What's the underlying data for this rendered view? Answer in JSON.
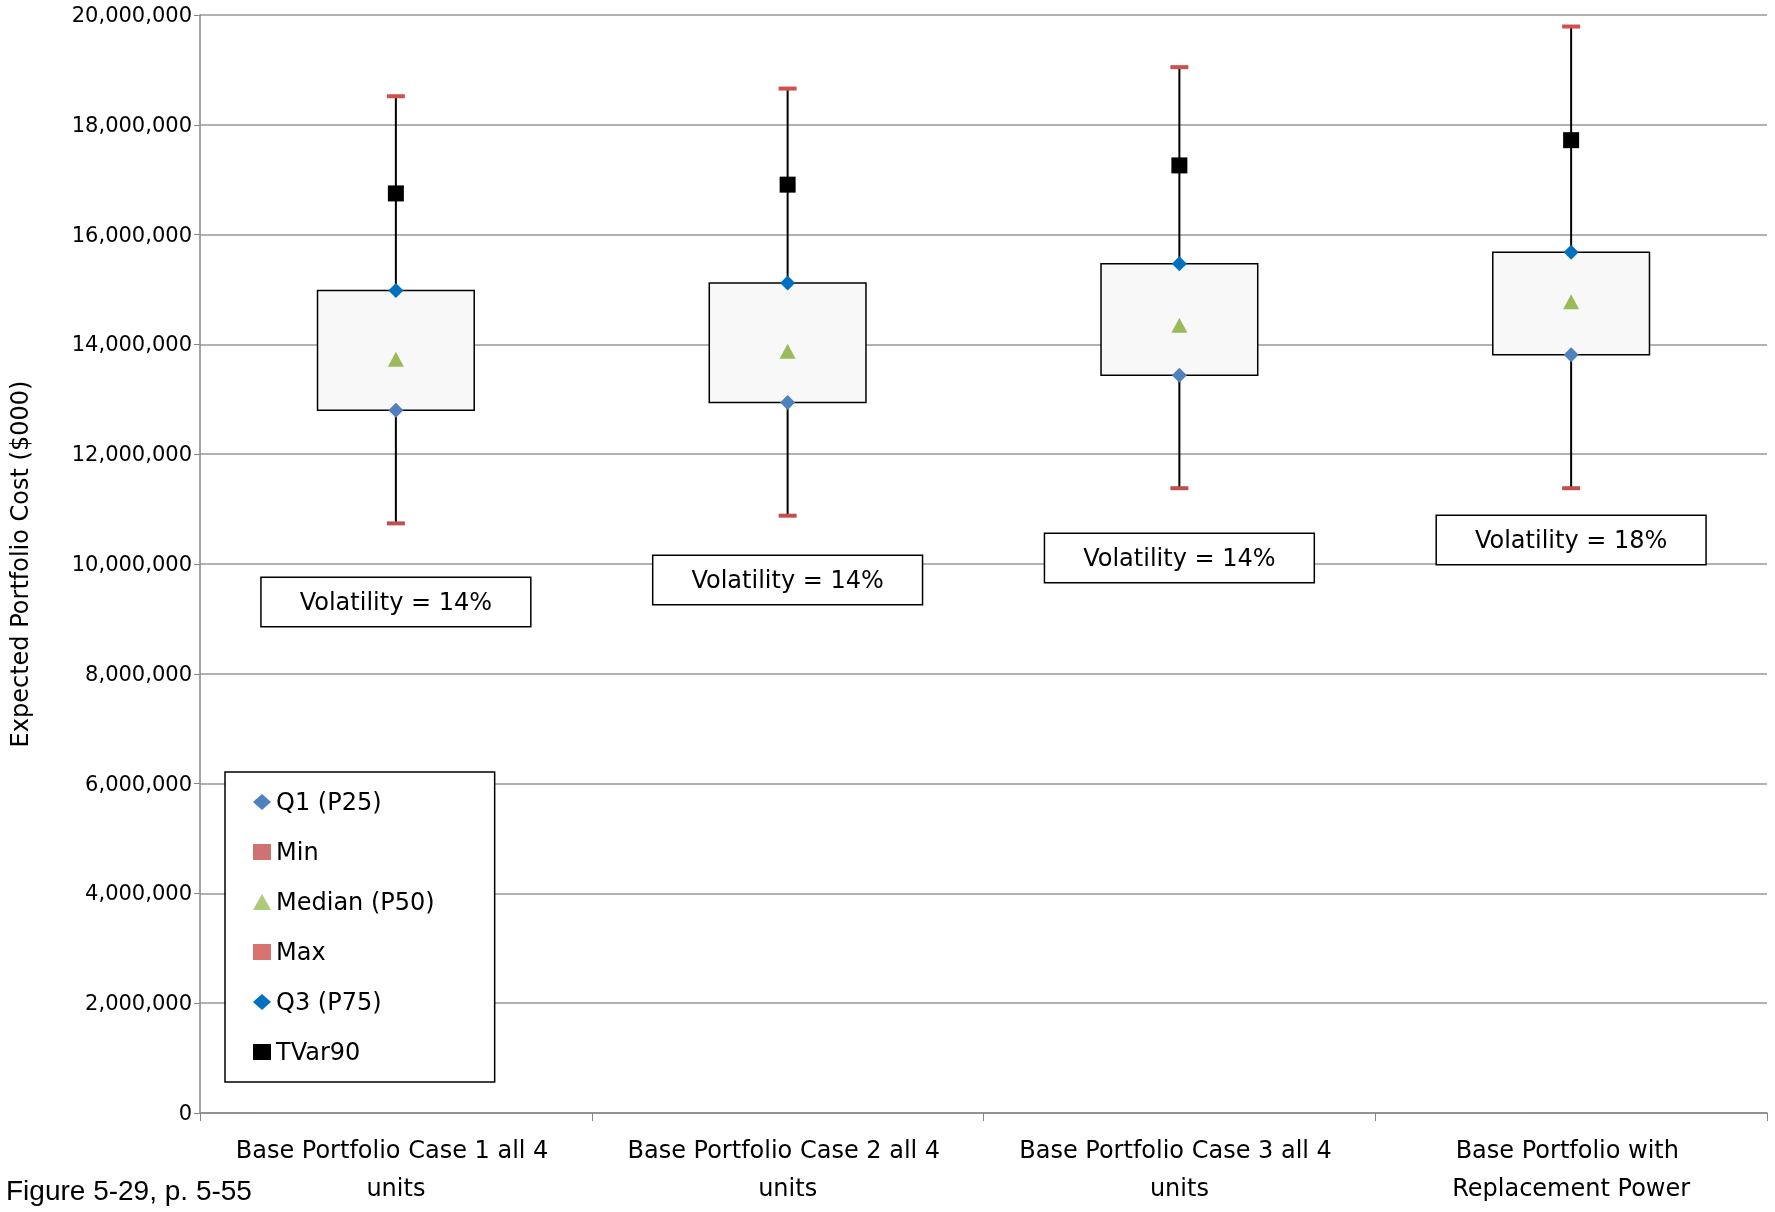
{
  "chart_data": {
    "type": "box",
    "ylabel": "Expected Portfolio Cost ($000)",
    "categories": [
      "Base Portfolio Case 1 all 4 units",
      "Base Portfolio Case 2 all 4 units",
      "Base Portfolio Case 3 all 4 units",
      "Base Portfolio with Replacement Power"
    ],
    "boxes": [
      {
        "low": 10740000,
        "q1": 12800000,
        "median": 13700000,
        "q3": 14980000,
        "high": 18520000
      },
      {
        "low": 10880000,
        "q1": 12940000,
        "median": 13850000,
        "q3": 15120000,
        "high": 18660000
      },
      {
        "low": 11380000,
        "q1": 13440000,
        "median": 14320000,
        "q3": 15470000,
        "high": 19050000
      },
      {
        "low": 11380000,
        "q1": 13810000,
        "median": 14750000,
        "q3": 15680000,
        "high": 19790000
      }
    ],
    "series": [
      {
        "name": "Q1 (P25)",
        "type": "scatter",
        "marker": "diamond",
        "color": "#4f81bd",
        "values": [
          12800000,
          12940000,
          13440000,
          13810000
        ]
      },
      {
        "name": "Min",
        "type": "box",
        "color": "#c0504d",
        "values": [
          null,
          null,
          null,
          null
        ]
      },
      {
        "name": "Median (P50)",
        "type": "box",
        "marker": "triangle",
        "color": "#9bbb59",
        "values": [
          null,
          null,
          null,
          null
        ]
      },
      {
        "name": "Max",
        "type": "box",
        "color": "#d0504d",
        "values": [
          null,
          null,
          null,
          null
        ]
      },
      {
        "name": "Q3 (P75)",
        "type": "scatter",
        "marker": "diamond",
        "color": "#0070c0",
        "values": [
          14980000,
          15120000,
          15470000,
          15680000
        ]
      },
      {
        "name": "TVar90",
        "type": "scatter",
        "marker": "square",
        "color": "#000000",
        "values": [
          16750000,
          16910000,
          17260000,
          17720000
        ]
      }
    ],
    "ylim": [
      0,
      20000000
    ],
    "yticks": [
      {
        "value": 0,
        "label": "0"
      },
      {
        "value": 2000000,
        "label": "2,000,000"
      },
      {
        "value": 4000000,
        "label": "4,000,000"
      },
      {
        "value": 6000000,
        "label": "6,000,000"
      },
      {
        "value": 8000000,
        "label": "8,000,000"
      },
      {
        "value": 10000000,
        "label": "10,000,000"
      },
      {
        "value": 12000000,
        "label": "12,000,000"
      },
      {
        "value": 14000000,
        "label": "14,000,000"
      },
      {
        "value": 16000000,
        "label": "16,000,000"
      },
      {
        "value": 18000000,
        "label": "18,000,000"
      },
      {
        "value": 20000000,
        "label": "20,000,000"
      }
    ],
    "grid": "y",
    "legend": "bottom left",
    "annotations": [
      "Volatility = 14%",
      "Volatility = 14%",
      "Volatility = 14%",
      "Volatility = 18%",
      "Figure 5-29, p. 5-55"
    ]
  }
}
